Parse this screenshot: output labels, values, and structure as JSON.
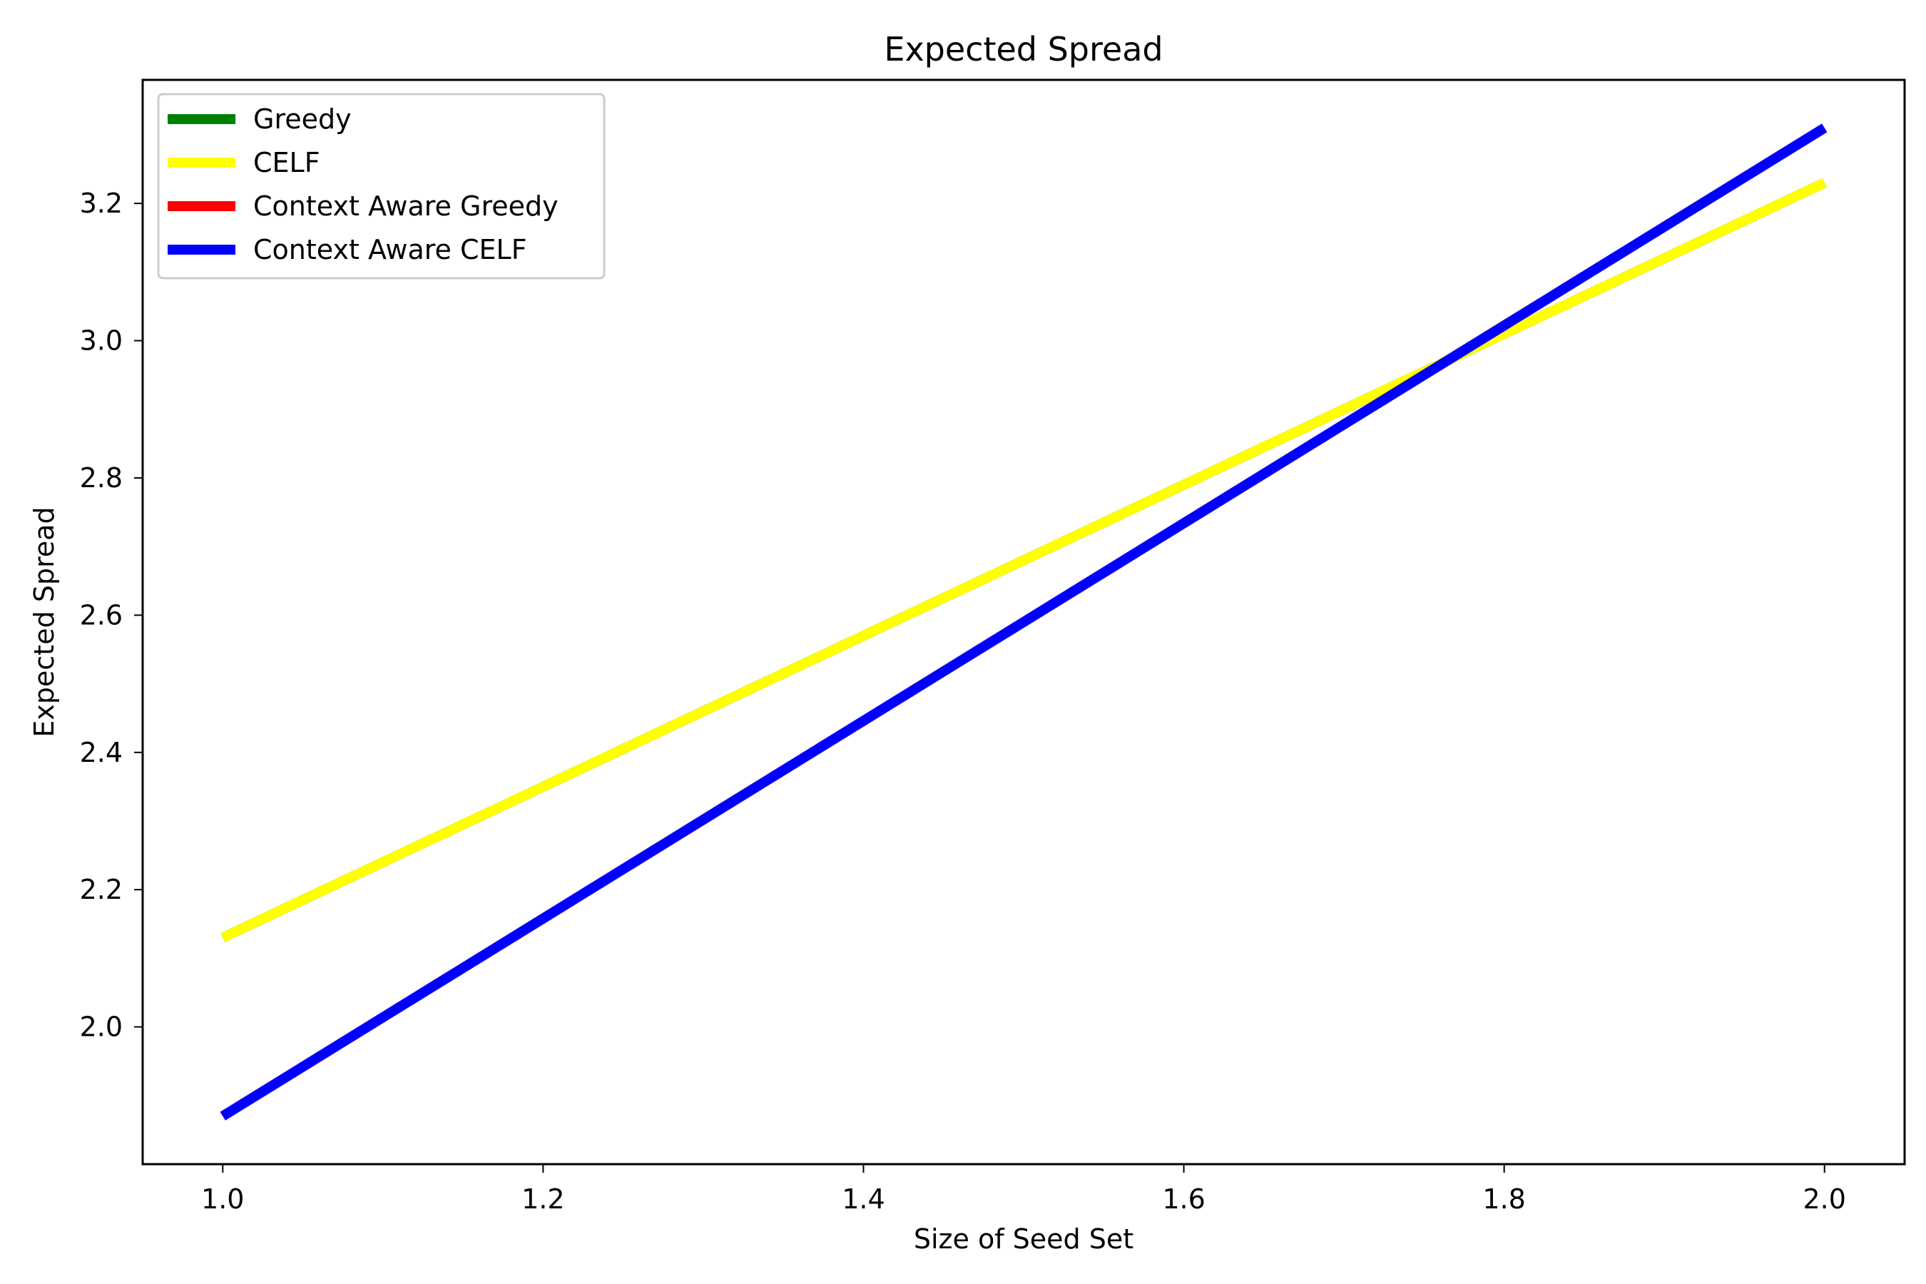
{
  "chart_data": {
    "type": "line",
    "title": "Expected Spread",
    "xlabel": "Size of Seed Set",
    "ylabel": "Expected Spread",
    "xlim": [
      0.95,
      2.05
    ],
    "ylim": [
      1.8,
      3.38
    ],
    "xticks": [
      1.0,
      1.2,
      1.4,
      1.6,
      1.8,
      2.0
    ],
    "xtick_labels": [
      "1.0",
      "1.2",
      "1.4",
      "1.6",
      "1.8",
      "2.0"
    ],
    "yticks": [
      2.0,
      2.2,
      2.4,
      2.6,
      2.8,
      3.0,
      3.2
    ],
    "ytick_labels": [
      "2.0",
      "2.2",
      "2.4",
      "2.6",
      "2.8",
      "3.0",
      "3.2"
    ],
    "grid": false,
    "legend_position": "top-left",
    "series": [
      {
        "name": "Greedy",
        "color": "#008000",
        "x": [
          1.0,
          2.0
        ],
        "y": [
          2.13,
          3.23
        ]
      },
      {
        "name": "CELF",
        "color": "#ffff00",
        "x": [
          1.0,
          2.0
        ],
        "y": [
          2.13,
          3.23
        ]
      },
      {
        "name": "Context Aware Greedy",
        "color": "#ff0000",
        "x": [
          1.0,
          2.0
        ],
        "y": [
          1.87,
          3.31
        ]
      },
      {
        "name": "Context Aware CELF",
        "color": "#0000ff",
        "x": [
          1.0,
          2.0
        ],
        "y": [
          1.87,
          3.31
        ]
      }
    ]
  }
}
